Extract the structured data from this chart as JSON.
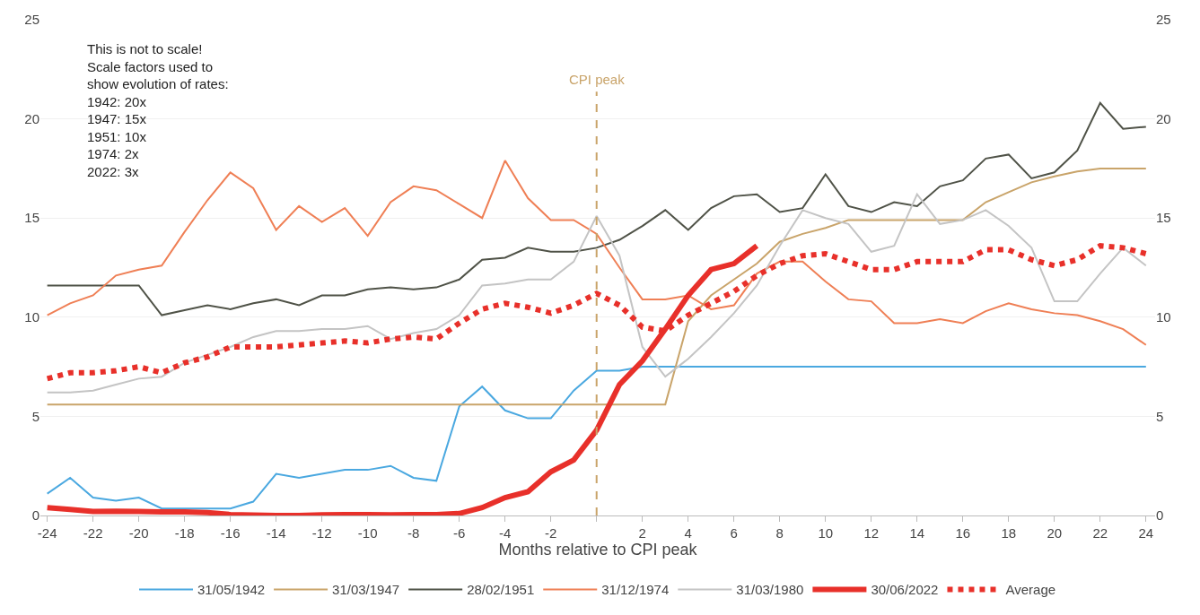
{
  "chart_data": {
    "type": "line",
    "xlabel": "Months relative to CPI peak",
    "x": [
      -24,
      -23,
      -22,
      -21,
      -20,
      -19,
      -18,
      -17,
      -16,
      -15,
      -14,
      -13,
      -12,
      -11,
      -10,
      -9,
      -8,
      -7,
      -6,
      -5,
      -4,
      -3,
      -2,
      -1,
      0,
      1,
      2,
      3,
      4,
      5,
      6,
      7,
      8,
      9,
      10,
      11,
      12,
      13,
      14,
      15,
      16,
      17,
      18,
      19,
      20,
      21,
      22,
      23,
      24
    ],
    "series": [
      {
        "name": "31/05/1942",
        "color": "#4aa8e0",
        "values": [
          1.1,
          1.9,
          0.9,
          0.75,
          0.9,
          0.35,
          0.35,
          0.35,
          0.35,
          0.7,
          2.1,
          1.9,
          2.1,
          2.3,
          2.3,
          2.5,
          1.9,
          1.75,
          5.5,
          6.5,
          5.3,
          4.9,
          4.9,
          6.3,
          7.3,
          7.3,
          7.5,
          7.5,
          7.5,
          7.5,
          7.5,
          7.5,
          7.5,
          7.5,
          7.5,
          7.5,
          7.5,
          7.5,
          7.5,
          7.5,
          7.5,
          7.5,
          7.5,
          7.5,
          7.5,
          7.5,
          7.5,
          7.5,
          7.5
        ]
      },
      {
        "name": "31/03/1947",
        "color": "#c9a46a",
        "values": [
          5.6,
          5.6,
          5.6,
          5.6,
          5.6,
          5.6,
          5.6,
          5.6,
          5.6,
          5.6,
          5.6,
          5.6,
          5.6,
          5.6,
          5.6,
          5.6,
          5.6,
          5.6,
          5.6,
          5.6,
          5.6,
          5.6,
          5.6,
          5.6,
          5.6,
          5.6,
          5.6,
          5.6,
          9.8,
          11.1,
          11.9,
          12.7,
          13.8,
          14.2,
          14.5,
          14.9,
          14.9,
          14.9,
          14.9,
          14.9,
          14.9,
          15.8,
          16.3,
          16.8,
          17.1,
          17.35,
          17.5,
          17.5,
          17.5
        ]
      },
      {
        "name": "28/02/1951",
        "color": "#4f5247",
        "values": [
          11.6,
          11.6,
          11.6,
          11.6,
          11.6,
          10.1,
          10.35,
          10.6,
          10.4,
          10.7,
          10.9,
          10.6,
          11.1,
          11.1,
          11.4,
          11.5,
          11.4,
          11.5,
          11.9,
          12.9,
          13.0,
          13.5,
          13.3,
          13.3,
          13.5,
          13.9,
          14.6,
          15.4,
          14.4,
          15.5,
          16.1,
          16.2,
          15.3,
          15.5,
          17.2,
          15.6,
          15.3,
          15.8,
          15.6,
          16.6,
          16.9,
          18.0,
          18.2,
          17.0,
          17.3,
          18.4,
          20.8,
          19.5,
          19.6
        ]
      },
      {
        "name": "31/12/1974",
        "color": "#ef7f55",
        "values": [
          10.1,
          10.7,
          11.1,
          12.1,
          12.4,
          12.6,
          14.3,
          15.9,
          17.3,
          16.5,
          14.4,
          15.6,
          14.8,
          15.5,
          14.1,
          15.8,
          16.6,
          16.4,
          15.7,
          15.0,
          17.9,
          16.0,
          14.9,
          14.9,
          14.2,
          12.5,
          10.9,
          10.9,
          11.1,
          10.4,
          10.6,
          12.2,
          12.8,
          12.8,
          11.8,
          10.9,
          10.8,
          9.7,
          9.7,
          9.9,
          9.7,
          10.3,
          10.7,
          10.4,
          10.2,
          10.1,
          9.8,
          9.4,
          8.6
        ]
      },
      {
        "name": "31/03/1980",
        "color": "#c4c4c4",
        "values": [
          6.2,
          6.2,
          6.3,
          6.6,
          6.9,
          7.0,
          7.7,
          8.1,
          8.5,
          9.0,
          9.3,
          9.3,
          9.4,
          9.4,
          9.55,
          8.9,
          9.2,
          9.4,
          10.1,
          11.6,
          11.7,
          11.9,
          11.9,
          12.8,
          15.1,
          13.1,
          8.5,
          7.0,
          7.9,
          9.0,
          10.2,
          11.6,
          13.6,
          15.4,
          15.0,
          14.7,
          13.3,
          13.6,
          16.2,
          14.7,
          14.9,
          15.4,
          14.6,
          13.5,
          10.8,
          10.8,
          12.2,
          13.5,
          12.6
        ]
      },
      {
        "name": "30/06/2022",
        "color": "#e8302a",
        "values": [
          0.4,
          0.3,
          0.2,
          0.22,
          0.2,
          0.18,
          0.18,
          0.15,
          0.05,
          0.02,
          0.0,
          0.0,
          0.03,
          0.05,
          0.05,
          0.03,
          0.05,
          0.05,
          0.1,
          0.4,
          0.9,
          1.2,
          2.2,
          2.8,
          4.3,
          6.6,
          7.8,
          9.4,
          11.1,
          12.4,
          12.7,
          13.6,
          null,
          null,
          null,
          null,
          null,
          null,
          null,
          null,
          null,
          null,
          null,
          null,
          null,
          null,
          null,
          null,
          null
        ]
      },
      {
        "name": "Average",
        "color": "#e8302a",
        "line_style": "dotted",
        "values": [
          6.9,
          7.2,
          7.2,
          7.3,
          7.5,
          7.2,
          7.7,
          8.0,
          8.5,
          8.5,
          8.5,
          8.6,
          8.7,
          8.8,
          8.7,
          8.9,
          9.0,
          8.9,
          9.7,
          10.4,
          10.7,
          10.5,
          10.2,
          10.6,
          11.2,
          10.6,
          9.5,
          9.3,
          10.1,
          10.7,
          11.3,
          12.1,
          12.7,
          13.1,
          13.2,
          12.8,
          12.4,
          12.4,
          12.8,
          12.8,
          12.8,
          13.4,
          13.4,
          12.9,
          12.6,
          12.9,
          13.6,
          13.5,
          13.2
        ]
      }
    ],
    "xlim": [
      -24.3,
      24.4
    ],
    "xticks": [
      {
        "value": -24,
        "label": "-24"
      },
      {
        "value": -22,
        "label": "-22"
      },
      {
        "value": -20,
        "label": "-20"
      },
      {
        "value": -18,
        "label": "-18"
      },
      {
        "value": -16,
        "label": "-16"
      },
      {
        "value": -14,
        "label": "-14"
      },
      {
        "value": -12,
        "label": "-12"
      },
      {
        "value": -10,
        "label": "-10"
      },
      {
        "value": -8,
        "label": "-8"
      },
      {
        "value": -6,
        "label": "-6"
      },
      {
        "value": -4,
        "label": "-4"
      },
      {
        "value": -2,
        "label": "-2"
      },
      {
        "value": 0,
        "label": null
      },
      2,
      4,
      6,
      8,
      10,
      12,
      14,
      16,
      18,
      20,
      22,
      24
    ],
    "ylim": [
      0,
      25
    ],
    "yticks": [
      0,
      5,
      10,
      15,
      20,
      25
    ],
    "y2lim": [
      0,
      25
    ],
    "y2ticks": [
      0,
      5,
      10,
      15,
      20,
      25
    ],
    "ref_lines": [
      {
        "axis": "x",
        "value": 0,
        "label": "CPI peak",
        "color": "#c9a46a",
        "line_style": "dashed"
      }
    ],
    "annotations": [
      "This is not to scale!\nScale factors used to\nshow evolution of rates:\n1942: 20x\n1947: 15x\n1951: 10x\n1974: 2x\n2022: 3x"
    ],
    "grid": "y",
    "legend": "bottom",
    "marker": "none"
  }
}
